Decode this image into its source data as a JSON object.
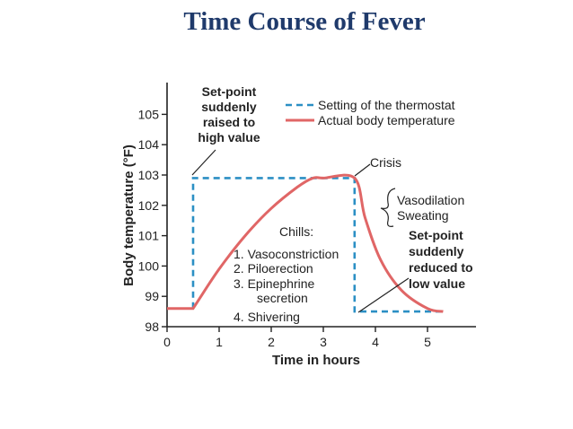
{
  "title": "Time Course of Fever",
  "chart_data": {
    "type": "line",
    "title": "Time Course of Fever",
    "xlabel": "Time in hours",
    "ylabel": "Body temperature (°F)",
    "xlim": [
      0,
      6
    ],
    "ylim": [
      98,
      106
    ],
    "xticks": [
      "0",
      "1",
      "2",
      "3",
      "4",
      "5"
    ],
    "yticks": [
      "98",
      "99",
      "100",
      "101",
      "102",
      "103",
      "104",
      "105"
    ],
    "legend_position": "top-right",
    "series": [
      {
        "name": "Setting of the thermostat",
        "style": "dashed",
        "color": "#2b8fc4",
        "x": [
          0.5,
          0.5,
          3.6,
          3.6,
          5.3
        ],
        "y": [
          98.6,
          102.9,
          102.9,
          98.5,
          98.5
        ]
      },
      {
        "name": "Actual body temperature",
        "style": "solid",
        "color": "#e06666",
        "x": [
          0,
          0.5,
          1.0,
          1.5,
          2.0,
          2.5,
          2.8,
          3.0,
          3.6,
          3.8,
          4.1,
          4.5,
          5.0,
          5.3
        ],
        "y": [
          98.6,
          98.6,
          99.9,
          101.0,
          101.9,
          102.6,
          102.9,
          102.9,
          102.9,
          101.6,
          100.2,
          99.2,
          98.6,
          98.5
        ]
      }
    ],
    "annotations": {
      "setpoint_raised": [
        "Set-point",
        "suddenly",
        "raised to",
        "high value"
      ],
      "crisis": "Crisis",
      "vasodilation": "Vasodilation",
      "sweating": "Sweating",
      "setpoint_reduced": [
        "Set-point",
        "suddenly",
        "reduced to",
        "low value"
      ],
      "chills_title": "Chills:",
      "chills_items": [
        "1. Vasoconstriction",
        "2. Piloerection",
        "3. Epinephrine",
        "secretion",
        "4. Shivering"
      ]
    }
  }
}
